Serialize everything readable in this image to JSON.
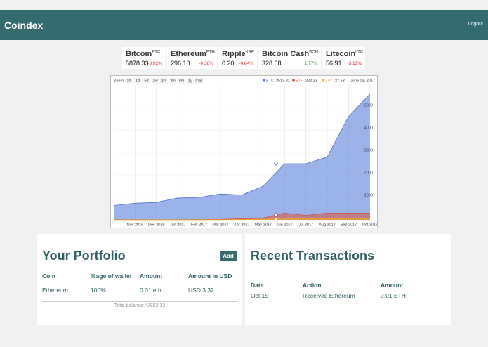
{
  "header": {
    "brand": "Coindex",
    "logout": "Logout"
  },
  "tickers": [
    {
      "name": "Bitcoin",
      "symbol": "BTC",
      "price": "5878.33",
      "change": "-3.92%"
    },
    {
      "name": "Ethereum",
      "symbol": "ETH",
      "price": "296.10",
      "change": "-0.38%"
    },
    {
      "name": "Ripple",
      "symbol": "XRP",
      "price": "0.20",
      "change": "-0.84%"
    },
    {
      "name": "Bitcoin Cash",
      "symbol": "BCH",
      "price": "328.68",
      "change": "1.77%"
    },
    {
      "name": "Litecoin",
      "symbol": "LTC",
      "price": "56.91",
      "change": "-3.12%"
    }
  ],
  "chart_data": {
    "type": "area",
    "zoom_label": "Zoom:",
    "zoom_buttons": [
      "1h",
      "1d",
      "5d",
      "1w",
      "1m",
      "3m",
      "6m",
      "1y",
      "max"
    ],
    "categories": [
      null,
      "Nov 2016",
      "Dec 2016",
      "Jan 2017",
      "Feb 2017",
      "Mar 2017",
      "Apr 2017",
      "May 2017",
      "Jun 2017",
      "Jul 2017",
      "Aug 2017",
      "Sep 2017",
      "Oct 2017"
    ],
    "series": [
      {
        "name": "BTC",
        "color": "#4a74d8",
        "values": [
          640,
          740,
          780,
          970,
          1000,
          1150,
          1100,
          1500,
          2500,
          2500,
          2800,
          4600,
          5600
        ]
      },
      {
        "name": "ETH",
        "color": "#d9513c",
        "values": [
          12,
          10,
          8,
          10,
          12,
          18,
          50,
          80,
          300,
          200,
          300,
          300,
          300
        ]
      },
      {
        "name": "LTC",
        "color": "#f5a623",
        "values": [
          4,
          4,
          4,
          4,
          4,
          4,
          10,
          25,
          45,
          45,
          45,
          60,
          55
        ]
      }
    ],
    "crosshair": {
      "values": [
        2513.81,
        222.23,
        27.53
      ],
      "date": "June 03, 2017"
    },
    "ylim": [
      0,
      6000
    ],
    "yticks": [
      1000,
      2000,
      3000,
      4000,
      5000
    ],
    "grid": true
  },
  "portfolio": {
    "title": "Your Portfolio",
    "button": "Add",
    "columns": [
      "Coin",
      "%age of wallet",
      "Amount",
      "Amount in USD"
    ],
    "rows": [
      [
        "Ethereum",
        "100%",
        "0.01 eth",
        "USD 3.32"
      ]
    ],
    "total": "Total balance: US$3.33"
  },
  "transactions": {
    "title": "Recent Transactions",
    "columns": [
      "Date",
      "Action",
      "Amount"
    ],
    "rows": [
      [
        "Oct 15",
        "Received Ethereum",
        "0.01 ETH"
      ]
    ]
  }
}
